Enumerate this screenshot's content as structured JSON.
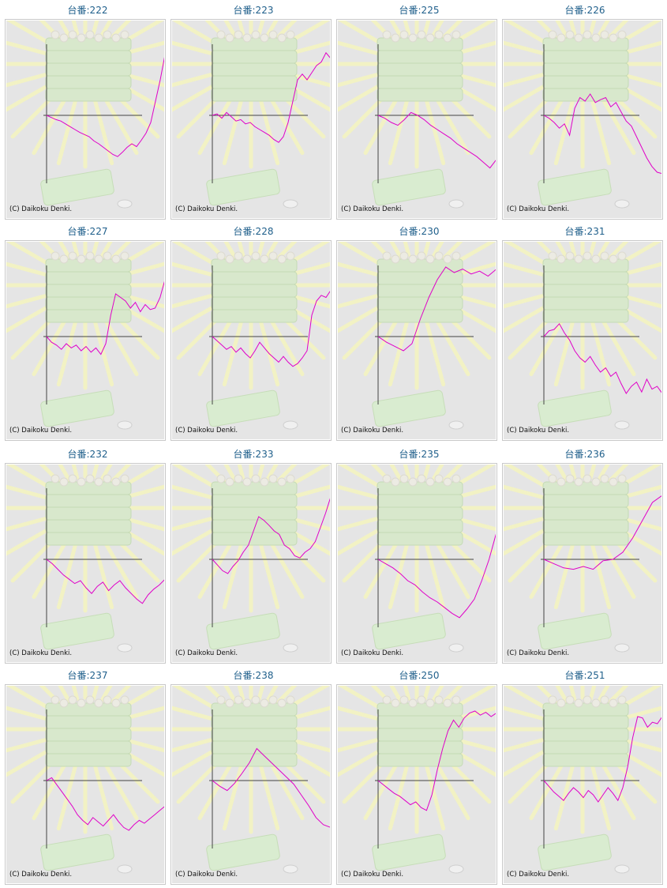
{
  "copyright": "(C) Daikoku Denki.",
  "label_prefix": "台番:",
  "colors": {
    "line": "#e000c8",
    "label": "#1f5f8b",
    "axis": "#444444",
    "background": "#e5e5e5"
  },
  "chart_data": [
    {
      "type": "line",
      "title": "台番:222",
      "values": [
        0,
        -3,
        -6,
        -8,
        -12,
        -16,
        -20,
        -24,
        -27,
        -30,
        -36,
        -40,
        -45,
        -50,
        -55,
        -58,
        -52,
        -45,
        -40,
        -44,
        -35,
        -25,
        -10,
        20,
        50,
        85
      ]
    },
    {
      "type": "line",
      "title": "台番:223",
      "values": [
        0,
        2,
        -4,
        4,
        -2,
        -8,
        -6,
        -12,
        -10,
        -16,
        -20,
        -24,
        -28,
        -34,
        -38,
        -30,
        -10,
        20,
        50,
        58,
        50,
        60,
        70,
        75,
        88,
        80
      ]
    },
    {
      "type": "line",
      "title": "台番:225",
      "values": [
        0,
        -4,
        -10,
        -14,
        -6,
        4,
        0,
        -6,
        -14,
        -20,
        -26,
        -32,
        -40,
        -46,
        -52,
        -58,
        -66,
        -74,
        -62
      ]
    },
    {
      "type": "line",
      "title": "台番:226",
      "values": [
        0,
        -4,
        -10,
        -18,
        -12,
        -28,
        10,
        25,
        20,
        30,
        18,
        22,
        25,
        12,
        18,
        5,
        -8,
        -15,
        -30,
        -45,
        -60,
        -72,
        -80,
        -82
      ]
    },
    {
      "type": "line",
      "title": "台番:227",
      "values": [
        0,
        -8,
        -12,
        -18,
        -10,
        -16,
        -12,
        -20,
        -14,
        -22,
        -16,
        -25,
        -10,
        30,
        60,
        55,
        50,
        40,
        48,
        35,
        45,
        38,
        40,
        55,
        80
      ]
    },
    {
      "type": "line",
      "title": "台番:228",
      "values": [
        0,
        -6,
        -12,
        -18,
        -14,
        -22,
        -16,
        -24,
        -30,
        -20,
        -8,
        -16,
        -24,
        -30,
        -36,
        -28,
        -36,
        -42,
        -38,
        -30,
        -20,
        30,
        50,
        58,
        55,
        65
      ]
    },
    {
      "type": "line",
      "title": "台番:230",
      "values": [
        0,
        -8,
        -14,
        -20,
        -10,
        25,
        55,
        80,
        100,
        90,
        95,
        88,
        92,
        85,
        95
      ]
    },
    {
      "type": "line",
      "title": "台番:231",
      "values": [
        0,
        8,
        10,
        18,
        5,
        -5,
        -20,
        -30,
        -36,
        -28,
        -40,
        -50,
        -44,
        -56,
        -50,
        -66,
        -80,
        -70,
        -64,
        -78,
        -60,
        -74,
        -70,
        -80
      ]
    },
    {
      "type": "line",
      "title": "台番:232",
      "values": [
        0,
        -6,
        -14,
        -22,
        -28,
        -34,
        -30,
        -40,
        -48,
        -38,
        -32,
        -44,
        -36,
        -30,
        -40,
        -48,
        -56,
        -62,
        -50,
        -42,
        -36,
        -28
      ]
    },
    {
      "type": "line",
      "title": "台番:233",
      "values": [
        0,
        -8,
        -16,
        -20,
        -10,
        -2,
        10,
        20,
        40,
        60,
        55,
        48,
        40,
        35,
        20,
        15,
        5,
        2,
        10,
        15,
        25,
        45,
        65,
        88
      ]
    },
    {
      "type": "line",
      "title": "台番:235",
      "values": [
        0,
        -6,
        -12,
        -20,
        -30,
        -36,
        -46,
        -54,
        -60,
        -68,
        -76,
        -82,
        -70,
        -56,
        -30,
        0,
        38
      ]
    },
    {
      "type": "line",
      "title": "台番:236",
      "values": [
        0,
        -6,
        -12,
        -14,
        -10,
        -14,
        -2,
        0,
        10,
        30,
        55,
        80,
        90
      ]
    },
    {
      "type": "line",
      "title": "台番:237",
      "values": [
        0,
        4,
        -6,
        -16,
        -26,
        -36,
        -48,
        -56,
        -62,
        -52,
        -58,
        -64,
        -56,
        -48,
        -58,
        -66,
        -70,
        -62,
        -56,
        -60,
        -54,
        -48,
        -42,
        -36
      ]
    },
    {
      "type": "line",
      "title": "台番:238",
      "values": [
        0,
        -8,
        -14,
        -4,
        10,
        25,
        45,
        35,
        25,
        15,
        5,
        -5,
        -20,
        -35,
        -52,
        -62,
        -66
      ]
    },
    {
      "type": "line",
      "title": "台番:250",
      "values": [
        0,
        -6,
        -12,
        -18,
        -22,
        -28,
        -34,
        -30,
        -38,
        -42,
        -20,
        15,
        45,
        70,
        85,
        75,
        88,
        95,
        100,
        92,
        96,
        90,
        95
      ]
    },
    {
      "type": "line",
      "title": "台番:251",
      "values": [
        0,
        -8,
        -16,
        -22,
        -28,
        -18,
        -10,
        -16,
        -24,
        -14,
        -20,
        -30,
        -20,
        -10,
        -18,
        -28,
        -10,
        20,
        60,
        90,
        88,
        75,
        82,
        80,
        90
      ]
    }
  ]
}
